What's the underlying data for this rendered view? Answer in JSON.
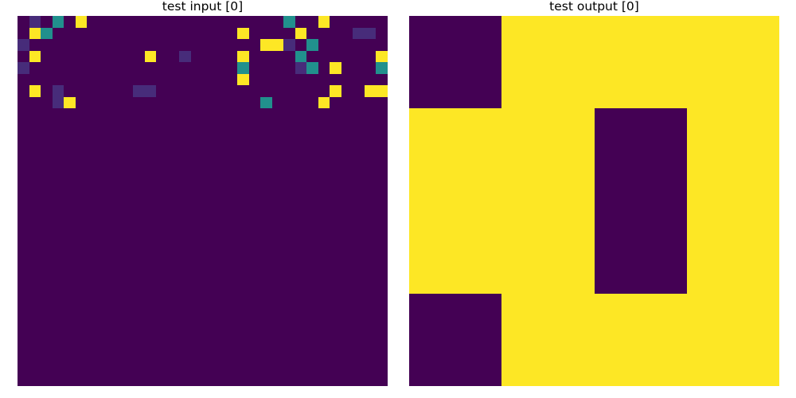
{
  "palette": {
    "0": "#440154",
    "1": "#472c7a",
    "2": "#3b528b",
    "3": "#21908d",
    "4": "#fde725"
  },
  "panels": [
    {
      "title": "test input [0]",
      "rows": [
        "01030400000000000000000300400000",
        "04300000000000000004000040000110",
        "10000000000000000000044103000000",
        "04000000000400100004000030000004",
        "10000000000000000003000013040003",
        "00000000000000000004000000000000",
        "04010000001100000000000000040044",
        "00014000000000000000030000400000",
        "00000000000000000000000000000000",
        "00000000000000000000000000000000",
        "00000000000000000000000000000000",
        "00000000000000000000000000000000",
        "00000000000000000000000000000000",
        "00000000000000000000000000000000",
        "00000000000000000000000000000000",
        "00000000000000000000000000000000",
        "00000000000000000000000000000000",
        "00000000000000000000000000000000",
        "00000000000000000000000000000000",
        "00000000000000000000000000000000",
        "00000000000000000000000000000000",
        "00000000000000000000000000000000",
        "00000000000000000000000000000000",
        "00000000000000000000000000000000",
        "00000000000000000000000000000000",
        "00000000000000000000000000000000",
        "00000000000000000000000000000000",
        "00000000000000000000000000000000",
        "00000000000000000000000000000000",
        "00000000000000000000000000000000",
        "00000000000000000000000000000000",
        "00000000000000000000000000000000"
      ]
    },
    {
      "title": "test output [0]",
      "rows": [
        "0444",
        "4404",
        "4404",
        "0444"
      ]
    }
  ]
}
